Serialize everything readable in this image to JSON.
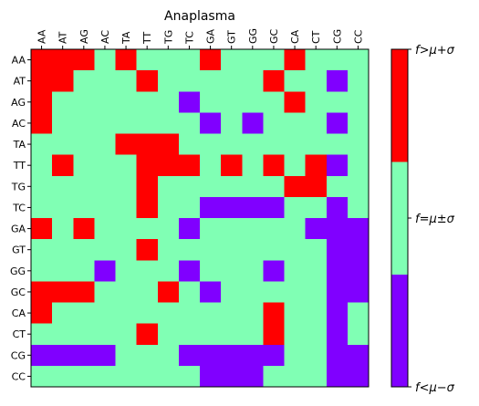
{
  "chart_data": {
    "type": "heatmap",
    "title": "Anaplasma",
    "x_tick_labels": [
      "AA",
      "AT",
      "AG",
      "AC",
      "TA",
      "TT",
      "TG",
      "TC",
      "GA",
      "GT",
      "GG",
      "GC",
      "CA",
      "CT",
      "CG",
      "CC"
    ],
    "y_tick_labels": [
      "AA",
      "AT",
      "AG",
      "AC",
      "TA",
      "TT",
      "TG",
      "TC",
      "GA",
      "GT",
      "GG",
      "GC",
      "CA",
      "CT",
      "CG",
      "CC"
    ],
    "x_tick_position": "top",
    "categories": [
      {
        "code": 0,
        "label": "f<μ−σ",
        "color": "#8000ff"
      },
      {
        "code": 1,
        "label": "f=μ±σ",
        "color": "#80ffb4"
      },
      {
        "code": 2,
        "label": "f>μ+σ",
        "color": "#ff0000"
      }
    ],
    "colorbar": {
      "position": "right",
      "ticks": [
        "f<μ−σ",
        "f=μ±σ",
        "f>μ+σ"
      ]
    },
    "matrix": [
      [
        2,
        2,
        2,
        1,
        2,
        1,
        1,
        1,
        2,
        1,
        1,
        1,
        2,
        1,
        1,
        1
      ],
      [
        2,
        2,
        1,
        1,
        1,
        2,
        1,
        1,
        1,
        1,
        1,
        2,
        1,
        1,
        0,
        1
      ],
      [
        2,
        1,
        1,
        1,
        1,
        1,
        1,
        0,
        1,
        1,
        1,
        1,
        2,
        1,
        1,
        1
      ],
      [
        2,
        1,
        1,
        1,
        1,
        1,
        1,
        1,
        0,
        1,
        0,
        1,
        1,
        1,
        0,
        1
      ],
      [
        1,
        1,
        1,
        1,
        2,
        2,
        2,
        1,
        1,
        1,
        1,
        1,
        1,
        1,
        1,
        1
      ],
      [
        1,
        2,
        1,
        1,
        1,
        2,
        2,
        2,
        1,
        2,
        1,
        2,
        1,
        2,
        0,
        1
      ],
      [
        1,
        1,
        1,
        1,
        1,
        2,
        1,
        1,
        1,
        1,
        1,
        1,
        2,
        2,
        1,
        1
      ],
      [
        1,
        1,
        1,
        1,
        1,
        2,
        1,
        1,
        0,
        0,
        0,
        0,
        1,
        1,
        0,
        1
      ],
      [
        2,
        1,
        2,
        1,
        1,
        1,
        1,
        0,
        1,
        1,
        1,
        1,
        1,
        0,
        0,
        0
      ],
      [
        1,
        1,
        1,
        1,
        1,
        2,
        1,
        1,
        1,
        1,
        1,
        1,
        1,
        1,
        0,
        0
      ],
      [
        1,
        1,
        1,
        0,
        1,
        1,
        1,
        0,
        1,
        1,
        1,
        0,
        1,
        1,
        0,
        0
      ],
      [
        2,
        2,
        2,
        1,
        1,
        1,
        2,
        1,
        0,
        1,
        1,
        1,
        1,
        1,
        0,
        0
      ],
      [
        2,
        1,
        1,
        1,
        1,
        1,
        1,
        1,
        1,
        1,
        1,
        2,
        1,
        1,
        0,
        1
      ],
      [
        1,
        1,
        1,
        1,
        1,
        2,
        1,
        1,
        1,
        1,
        1,
        2,
        1,
        1,
        0,
        1
      ],
      [
        0,
        0,
        0,
        0,
        1,
        1,
        1,
        0,
        0,
        0,
        0,
        0,
        1,
        1,
        0,
        0
      ],
      [
        1,
        1,
        1,
        1,
        1,
        1,
        1,
        1,
        0,
        0,
        0,
        1,
        1,
        1,
        0,
        0
      ]
    ],
    "grid": false,
    "legend": "none"
  }
}
